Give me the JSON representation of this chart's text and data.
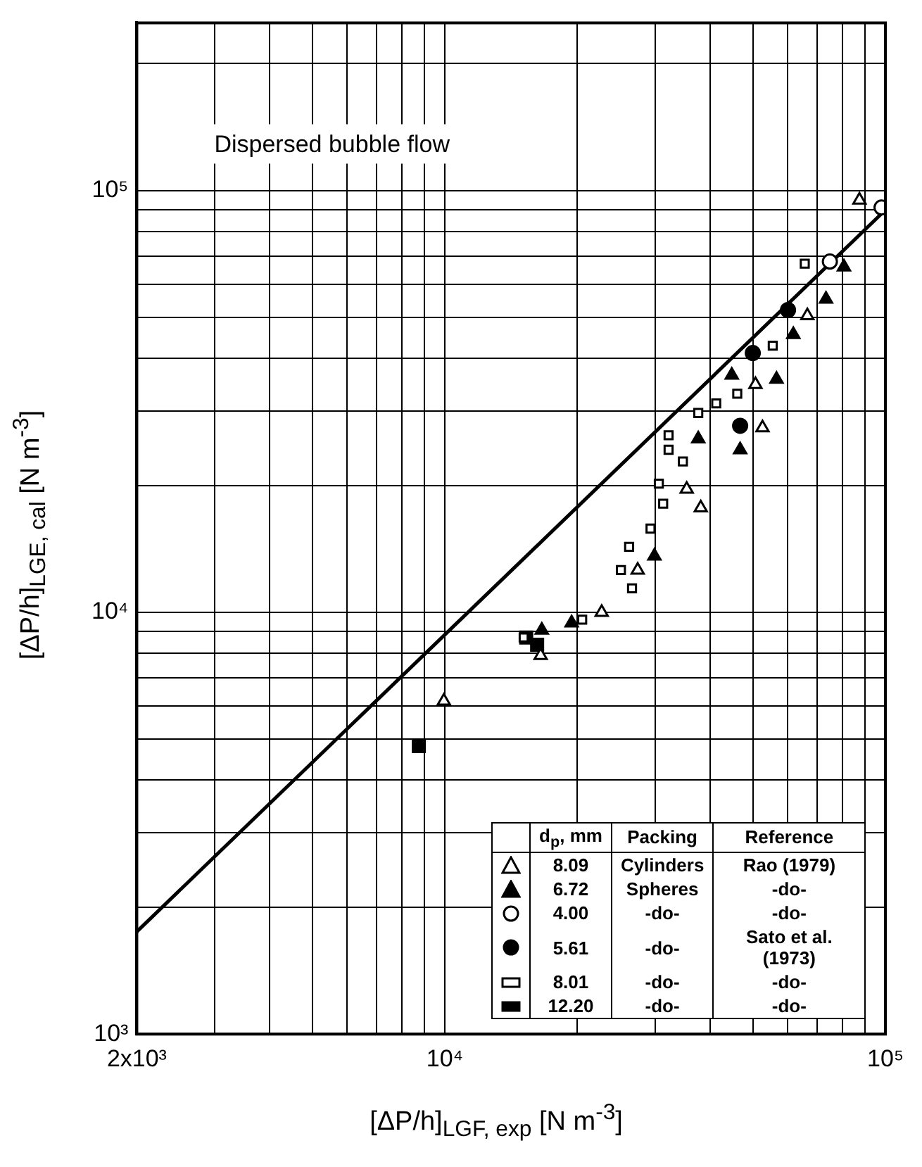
{
  "chart_data": {
    "type": "scatter",
    "title": "Dispersed bubble flow",
    "xlabel": "[ΔP/h]$_{LGF, exp}$  [N m$^{-3}$]",
    "ylabel": "[ΔP/h]$_{LGE, cal}$  [N m$^{-3}$]",
    "log": "xy",
    "grid": true,
    "legend": "bottom right",
    "xlim": [
      2000,
      100000
    ],
    "ylim": [
      1000,
      250000
    ],
    "xticks": [
      {
        "value": 2000,
        "label": "2x10³"
      },
      {
        "value": 3000,
        "label": null
      },
      {
        "value": 4000,
        "label": null
      },
      {
        "value": 5000,
        "label": null
      },
      {
        "value": 6000,
        "label": null
      },
      {
        "value": 7000,
        "label": null
      },
      {
        "value": 8000,
        "label": null
      },
      {
        "value": 9000,
        "label": null
      },
      {
        "value": 10000,
        "label": "10⁴"
      },
      {
        "value": 20000,
        "label": null
      },
      {
        "value": 30000,
        "label": null
      },
      {
        "value": 40000,
        "label": null
      },
      {
        "value": 50000,
        "label": null
      },
      {
        "value": 60000,
        "label": null
      },
      {
        "value": 70000,
        "label": null
      },
      {
        "value": 80000,
        "label": null
      },
      {
        "value": 90000,
        "label": null
      },
      {
        "value": 100000,
        "label": "10⁵"
      }
    ],
    "yticks": [
      {
        "value": 1000,
        "label": "10³"
      },
      {
        "value": 2000,
        "label": null
      },
      {
        "value": 3000,
        "label": null
      },
      {
        "value": 4000,
        "label": null
      },
      {
        "value": 5000,
        "label": null
      },
      {
        "value": 6000,
        "label": null
      },
      {
        "value": 7000,
        "label": null
      },
      {
        "value": 8000,
        "label": null
      },
      {
        "value": 9000,
        "label": null
      },
      {
        "value": 10000,
        "label": "10⁴"
      },
      {
        "value": 20000,
        "label": null
      },
      {
        "value": 30000,
        "label": null
      },
      {
        "value": 40000,
        "label": null
      },
      {
        "value": 50000,
        "label": null
      },
      {
        "value": 60000,
        "label": null
      },
      {
        "value": 70000,
        "label": null
      },
      {
        "value": 80000,
        "label": null
      },
      {
        "value": 90000,
        "label": null
      },
      {
        "value": 100000,
        "label": "10⁵"
      },
      {
        "value": 200000,
        "label": null
      }
    ],
    "annotations": [
      "d$_{p}$, mm",
      "Packing",
      "Reference",
      "Cylinders",
      "Rao (1979)",
      "Spheres",
      "-do-",
      "-do-",
      "-do-",
      "-do-",
      "Sato et al. (1973)",
      "-do-",
      "-do-",
      "-do-",
      "-do-"
    ],
    "series": [
      {
        "type": "line",
        "x": [
          2000,
          100000
        ],
        "values": [
          1750,
          90000
        ],
        "color": "#000000",
        "marker": "none",
        "line_style": "solid"
      },
      {
        "name": "8.09",
        "marker": "triangle",
        "color": "#ffffff",
        "x": [
          87300,
          66500,
          50700,
          52600,
          35400,
          38100,
          27400,
          22700,
          16500,
          9950
        ],
        "values": [
          95000,
          50500,
          34700,
          27400,
          19600,
          17700,
          12600,
          10000,
          7900,
          6160
        ]
      },
      {
        "name": "6.72",
        "marker": "triangle",
        "color": "#000000",
        "x": [
          80500,
          73300,
          61800,
          56600,
          44800,
          46800,
          37600,
          29900,
          19400,
          16600
        ],
        "values": [
          65900,
          55300,
          45600,
          35700,
          36500,
          24300,
          25800,
          13600,
          9440,
          9080
        ]
      },
      {
        "name": "4.00",
        "marker": "circle",
        "color": "#ffffff",
        "x": [
          98000,
          74800
        ],
        "values": [
          91200,
          67900
        ]
      },
      {
        "name": "5.61",
        "marker": "circle",
        "color": "#000000",
        "x": [
          60100,
          50000,
          46800
        ],
        "values": [
          52100,
          41200,
          27700
        ]
      },
      {
        "name": "8.01",
        "marker": "square",
        "color": "#ffffff",
        "x": [
          65600,
          55500,
          46100,
          41300,
          37600,
          32200,
          32200,
          34700,
          30600,
          31300,
          29300,
          26200,
          25100,
          26600,
          15100,
          20500
        ],
        "values": [
          67100,
          42900,
          33000,
          31300,
          29700,
          26300,
          24300,
          22800,
          20200,
          18100,
          15800,
          14300,
          12600,
          11400,
          8720,
          9610
        ]
      },
      {
        "name": "12.20",
        "marker": "square",
        "color": "#000000",
        "x": [
          15300,
          16200,
          8730
        ],
        "values": [
          8720,
          8380,
          4820
        ]
      }
    ]
  }
}
